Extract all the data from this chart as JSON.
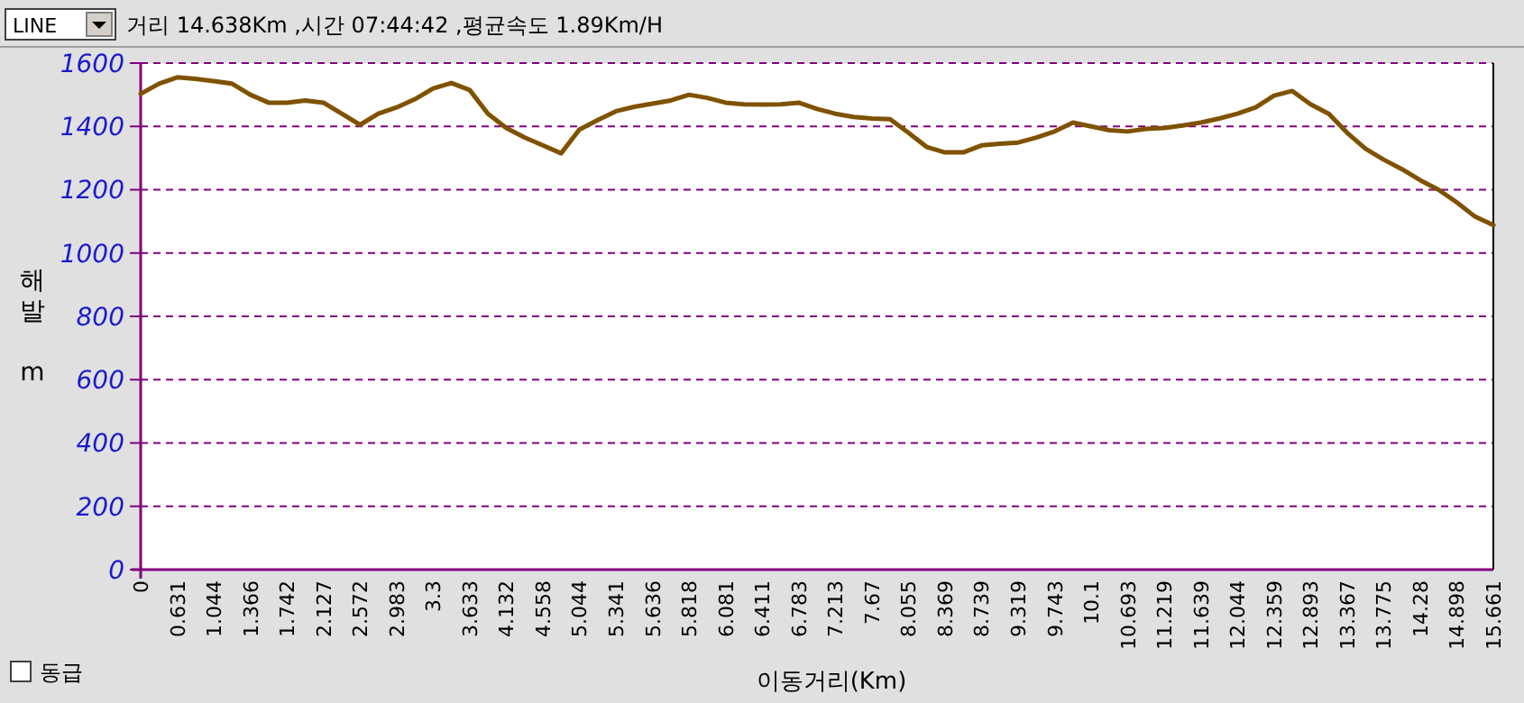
{
  "chart_data": {
    "type": "line",
    "title": "거리 14.638Km ,시간 07:44:42 ,평균속도 1.89Km/H",
    "xlabel": "이동거리(Km)",
    "ylabel": "해발 m",
    "annotations": [
      "LINE",
      "동급"
    ],
    "categories": [
      "0",
      null,
      "0.631",
      null,
      "1.044",
      null,
      "1.366",
      null,
      "1.742",
      null,
      "2.127",
      null,
      "2.572",
      null,
      "2.983",
      null,
      "3.3",
      null,
      "3.633",
      null,
      "4.132",
      null,
      "4.558",
      null,
      "5.044",
      null,
      "5.341",
      null,
      "5.636",
      null,
      "5.818",
      null,
      "6.081",
      null,
      "6.411",
      null,
      "6.783",
      null,
      "7.213",
      null,
      "7.67",
      null,
      "8.055",
      null,
      "8.369",
      null,
      "8.739",
      null,
      "9.319",
      null,
      "9.743",
      null,
      "10.1",
      null,
      "10.693",
      null,
      "11.219",
      null,
      "11.639",
      null,
      "12.044",
      null,
      "12.359",
      null,
      "12.893",
      null,
      "13.367",
      null,
      "13.775",
      null,
      "14.28",
      null,
      "14.898",
      null,
      "15.661"
    ],
    "series": [
      {
        "color": "#7f5200",
        "values": [
          1503,
          1535,
          1555,
          1550,
          1543,
          1535,
          1500,
          1475,
          1475,
          1482,
          1475,
          1440,
          1405,
          1440,
          1460,
          1486,
          1520,
          1537,
          1515,
          1440,
          1395,
          1365,
          1340,
          1315,
          1390,
          1420,
          1448,
          1462,
          1472,
          1482,
          1500,
          1490,
          1475,
          1470,
          1469,
          1470,
          1475,
          1455,
          1440,
          1430,
          1425,
          1423,
          1380,
          1335,
          1318,
          1318,
          1340,
          1345,
          1349,
          1365,
          1384,
          1412,
          1400,
          1388,
          1384,
          1392,
          1395,
          1403,
          1412,
          1425,
          1440,
          1460,
          1497,
          1512,
          1470,
          1440,
          1380,
          1330,
          1295,
          1265,
          1230,
          1200,
          1160,
          1115,
          1088
        ]
      }
    ],
    "ylim": [
      0,
      1600
    ],
    "yticks": [
      0,
      200,
      400,
      600,
      800,
      1000,
      1200,
      1400,
      1600
    ],
    "grid": "y",
    "marker": "none",
    "line_style": "solid"
  }
}
